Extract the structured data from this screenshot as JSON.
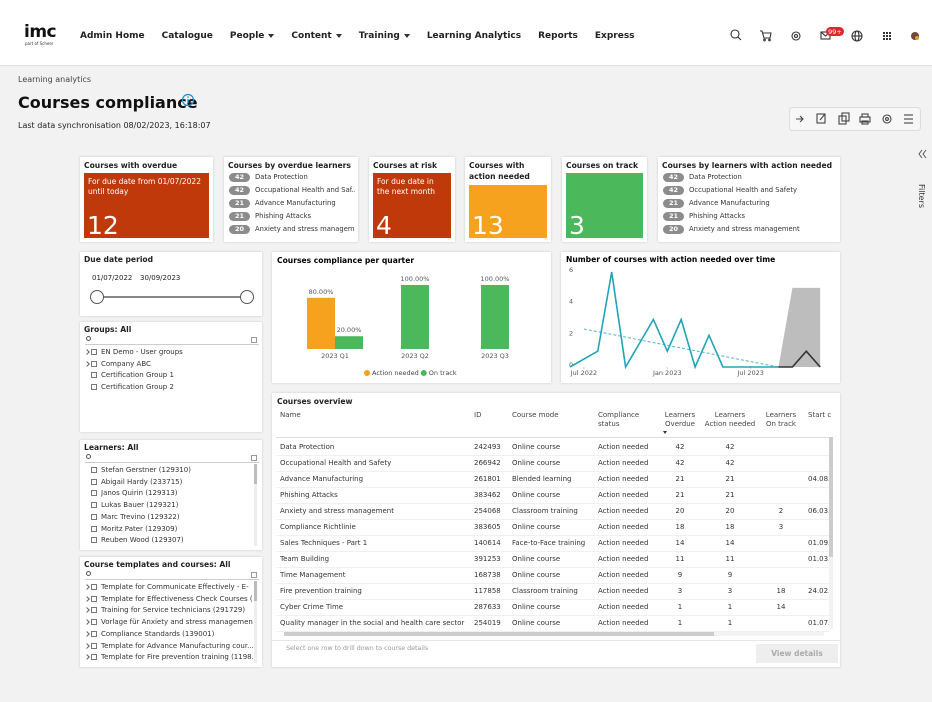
{
  "nav": {
    "logo": "imc",
    "logo_sub": "part of Scheer",
    "items": [
      {
        "label": "Admin Home",
        "dropdown": false
      },
      {
        "label": "Catalogue",
        "dropdown": false
      },
      {
        "label": "People",
        "dropdown": true
      },
      {
        "label": "Content",
        "dropdown": true
      },
      {
        "label": "Training",
        "dropdown": true
      },
      {
        "label": "Learning Analytics",
        "dropdown": false
      },
      {
        "label": "Reports",
        "dropdown": false
      },
      {
        "label": "Express",
        "dropdown": false
      }
    ],
    "badge": "99+"
  },
  "breadcrumb": "Learning analytics",
  "page_title": "Courses compliance",
  "sync": "Last data synchronisation 08/02/2023, 16:18:07",
  "filters_tab": "Filters",
  "kpis": [
    {
      "title": "Courses with overdue learners",
      "color": "#c0390b",
      "note": "For due date from 01/07/2022 until today",
      "value": 12
    },
    {
      "title": "Courses by overdue learners",
      "list": [
        {
          "count": 42,
          "name": "Data Protection"
        },
        {
          "count": 42,
          "name": "Occupational Health and Saf..."
        },
        {
          "count": 21,
          "name": "Advance Manufacturing"
        },
        {
          "count": 21,
          "name": "Phishing Attacks"
        },
        {
          "count": 20,
          "name": "Anxiety and stress managem..."
        }
      ]
    },
    {
      "title": "Courses at risk",
      "color": "#c0390b",
      "note": "For due date in the next month",
      "value": 4
    },
    {
      "title": "Courses with action needed",
      "color": "#f6a21e",
      "value": 13
    },
    {
      "title": "Courses on track",
      "color": "#4cb85c",
      "value": 3
    },
    {
      "title": "Courses by learners with action needed",
      "list": [
        {
          "count": 42,
          "name": "Data Protection"
        },
        {
          "count": 42,
          "name": "Occupational Health and Safety"
        },
        {
          "count": 21,
          "name": "Advance Manufacturing"
        },
        {
          "count": 21,
          "name": "Phishing Attacks"
        },
        {
          "count": 20,
          "name": "Anxiety and stress management"
        }
      ]
    }
  ],
  "filters": {
    "due_date": {
      "title": "Due date period",
      "start": "01/07/2022",
      "end": "30/09/2023"
    },
    "groups": {
      "title": "Groups: All",
      "items": [
        {
          "label": "EN Demo - User groups",
          "expandable": true
        },
        {
          "label": "Company ABC",
          "expandable": true
        },
        {
          "label": "Certification Group 1",
          "expandable": false
        },
        {
          "label": "Certification Group 2",
          "expandable": false
        }
      ]
    },
    "learners": {
      "title": "Learners: All",
      "items": [
        {
          "label": "Stefan Gerstner (129310)",
          "expandable": false
        },
        {
          "label": "Abigail Hardy (233715)",
          "expandable": false
        },
        {
          "label": "Janos Quirin (129313)",
          "expandable": false
        },
        {
          "label": "Lukas Bauer (129321)",
          "expandable": false
        },
        {
          "label": "Marc Trevino (129322)",
          "expandable": false
        },
        {
          "label": "Moritz Pater (129309)",
          "expandable": false
        },
        {
          "label": "Reuben Wood (129307)",
          "expandable": false
        }
      ]
    },
    "courses": {
      "title": "Course templates and courses: All",
      "items": [
        {
          "label": "Template for Communicate Effectively - E-",
          "expandable": true
        },
        {
          "label": "Template for Effectiveness Check Courses (",
          "expandable": true
        },
        {
          "label": "Training for Service technicians (291729)",
          "expandable": true
        },
        {
          "label": "Vorlage für Anxiety and stress managemen",
          "expandable": true
        },
        {
          "label": "Compliance Standards (139001)",
          "expandable": true
        },
        {
          "label": "Template for Advance Manufacturing cour...",
          "expandable": true
        },
        {
          "label": "Template for Fire prevention training (1198...",
          "expandable": true
        }
      ]
    }
  },
  "chart_data": [
    {
      "type": "bar",
      "title": "Courses compliance per quarter",
      "categories": [
        "2023 Q1",
        "2023 Q2",
        "2023 Q3"
      ],
      "series": [
        {
          "name": "Action needed",
          "color": "#f6a21e",
          "values": [
            80,
            null,
            null
          ],
          "value_labels": [
            "80.00%",
            null,
            null
          ]
        },
        {
          "name": "On track",
          "color": "#4cb85c",
          "values": [
            20,
            100,
            100
          ],
          "value_labels": [
            "20.00%",
            "100.00%",
            "100.00%"
          ]
        }
      ],
      "ylim": [
        0,
        100
      ],
      "legend": "bottom"
    },
    {
      "type": "line",
      "title": "Number of courses with action needed over time",
      "x": [
        "2022-06",
        "2022-07",
        "2022-08",
        "2022-09",
        "2022-10",
        "2022-11",
        "2022-12",
        "2023-01",
        "2023-02",
        "2023-03",
        "2023-04",
        "2023-05",
        "2023-06",
        "2023-07",
        "2023-08",
        "2023-09",
        "2023-10",
        "2023-11",
        "2023-12"
      ],
      "series": [
        {
          "color": "#bdbdbd",
          "area": true,
          "values": [
            null,
            null,
            null,
            null,
            null,
            null,
            null,
            null,
            null,
            null,
            null,
            null,
            null,
            null,
            null,
            0,
            5,
            5,
            5
          ]
        },
        {
          "color": "#20a5b8",
          "dashed": true,
          "values": [
            null,
            2.4,
            2.23,
            2.06,
            1.89,
            1.71,
            1.54,
            1.37,
            1.2,
            1.03,
            0.86,
            0.69,
            0.51,
            0.34,
            0.17,
            0,
            null,
            null,
            null
          ]
        },
        {
          "color": "#20a5b8",
          "values": [
            0,
            0.5,
            1,
            6,
            0,
            1.5,
            3,
            1,
            3,
            0,
            2,
            0,
            0,
            0,
            0,
            0,
            null,
            null,
            null
          ]
        },
        {
          "color": "#333333",
          "values": [
            null,
            null,
            null,
            null,
            null,
            null,
            null,
            null,
            null,
            null,
            null,
            null,
            null,
            null,
            null,
            0,
            0,
            1,
            0
          ]
        }
      ],
      "ylim": [
        0,
        6.6
      ],
      "yticks": [
        0,
        2,
        4,
        6
      ],
      "xticks": [
        {
          "value": "2022-07",
          "label": "Jul 2022"
        },
        {
          "value": "2023-01",
          "label": "Jan 2023"
        },
        {
          "value": "2023-07",
          "label": "Jul 2023"
        }
      ],
      "grid": false
    }
  ],
  "table": {
    "title": "Courses overview",
    "columns": [
      "Name",
      "ID",
      "Course mode",
      "Compliance status",
      "Learners Overdue",
      "Learners Action needed",
      "Learners On track",
      "Start c"
    ],
    "rows": [
      [
        "Data Protection",
        "242493",
        "Online course",
        "Action needed",
        42,
        42,
        null,
        null
      ],
      [
        "Occupational Health and Safety",
        "266942",
        "Online course",
        "Action needed",
        42,
        42,
        null,
        null
      ],
      [
        "Advance Manufacturing",
        "261801",
        "Blended learning",
        "Action needed",
        21,
        21,
        null,
        "04.08."
      ],
      [
        "Phishing Attacks",
        "383462",
        "Online course",
        "Action needed",
        21,
        21,
        null,
        null
      ],
      [
        "Anxiety and stress management",
        "254068",
        "Classroom training",
        "Action needed",
        20,
        20,
        2,
        "06.03."
      ],
      [
        "Compliance Richtlinie",
        "383605",
        "Online course",
        "Action needed",
        18,
        18,
        3,
        null
      ],
      [
        "Sales Techniques - Part 1",
        "140614",
        "Face-to-Face training",
        "Action needed",
        14,
        14,
        null,
        "01.09."
      ],
      [
        "Team Building",
        "391253",
        "Online course",
        "Action needed",
        11,
        11,
        null,
        "01.03."
      ],
      [
        "Time Management",
        "168738",
        "Online course",
        "Action needed",
        9,
        9,
        null,
        null
      ],
      [
        "Fire prevention training",
        "117858",
        "Classroom training",
        "Action needed",
        3,
        3,
        18,
        "24.02."
      ],
      [
        "Cyber Crime Time",
        "287633",
        "Online course",
        "Action needed",
        1,
        1,
        14,
        null
      ],
      [
        "Quality manager in the social and health care sector",
        "254019",
        "Online course",
        "Action needed",
        1,
        1,
        null,
        "01.07."
      ]
    ],
    "footer_hint": "Select one row to drill down to course details",
    "button": "View details"
  }
}
